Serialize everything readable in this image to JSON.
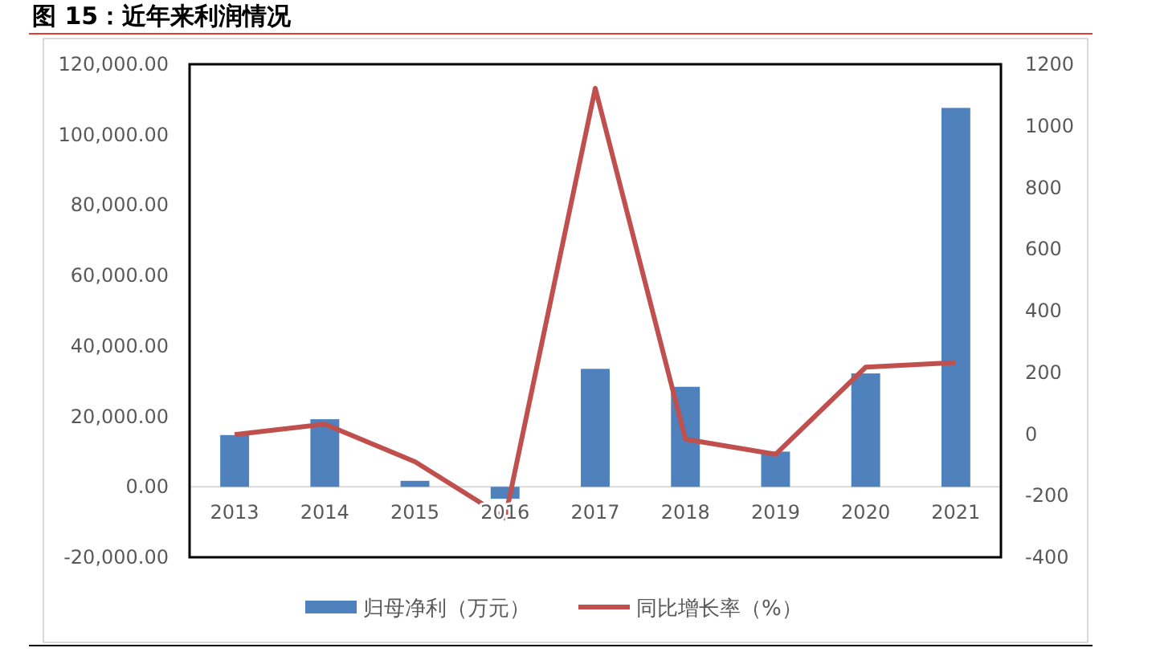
{
  "chart_data": {
    "type": "bar",
    "title": "图 15：近年来利润情况",
    "categories": [
      "2013",
      "2014",
      "2015",
      "2016",
      "2017",
      "2018",
      "2019",
      "2020",
      "2021"
    ],
    "series": [
      {
        "name": "归母净利（万元）",
        "color": "#4f81bd",
        "values": [
          14700,
          19200,
          1700,
          -3400,
          33500,
          28400,
          10000,
          32200,
          107600
        ]
      },
      {
        "name": "同比增长率（%）",
        "type": "line",
        "axis": "y2",
        "color": "#c0504d",
        "marker": "none",
        "values": [
          -2,
          32,
          -90,
          -273,
          1122,
          -17,
          -66,
          217,
          232
        ]
      }
    ],
    "ylim": [
      -20000,
      120000
    ],
    "yticks": [
      {
        "value": -20000,
        "label": "-20,000.00"
      },
      {
        "value": 0,
        "label": "0.00"
      },
      {
        "value": 20000,
        "label": "20,000.00"
      },
      {
        "value": 40000,
        "label": "40,000.00"
      },
      {
        "value": 60000,
        "label": "60,000.00"
      },
      {
        "value": 80000,
        "label": "80,000.00"
      },
      {
        "value": 100000,
        "label": "100,000.00"
      },
      {
        "value": 120000,
        "label": "120,000.00"
      }
    ],
    "y2lim": [
      -400,
      1200
    ],
    "y2ticks": [
      -400,
      -200,
      0,
      200,
      400,
      600,
      800,
      1000,
      1200
    ],
    "legend": "bottom"
  }
}
